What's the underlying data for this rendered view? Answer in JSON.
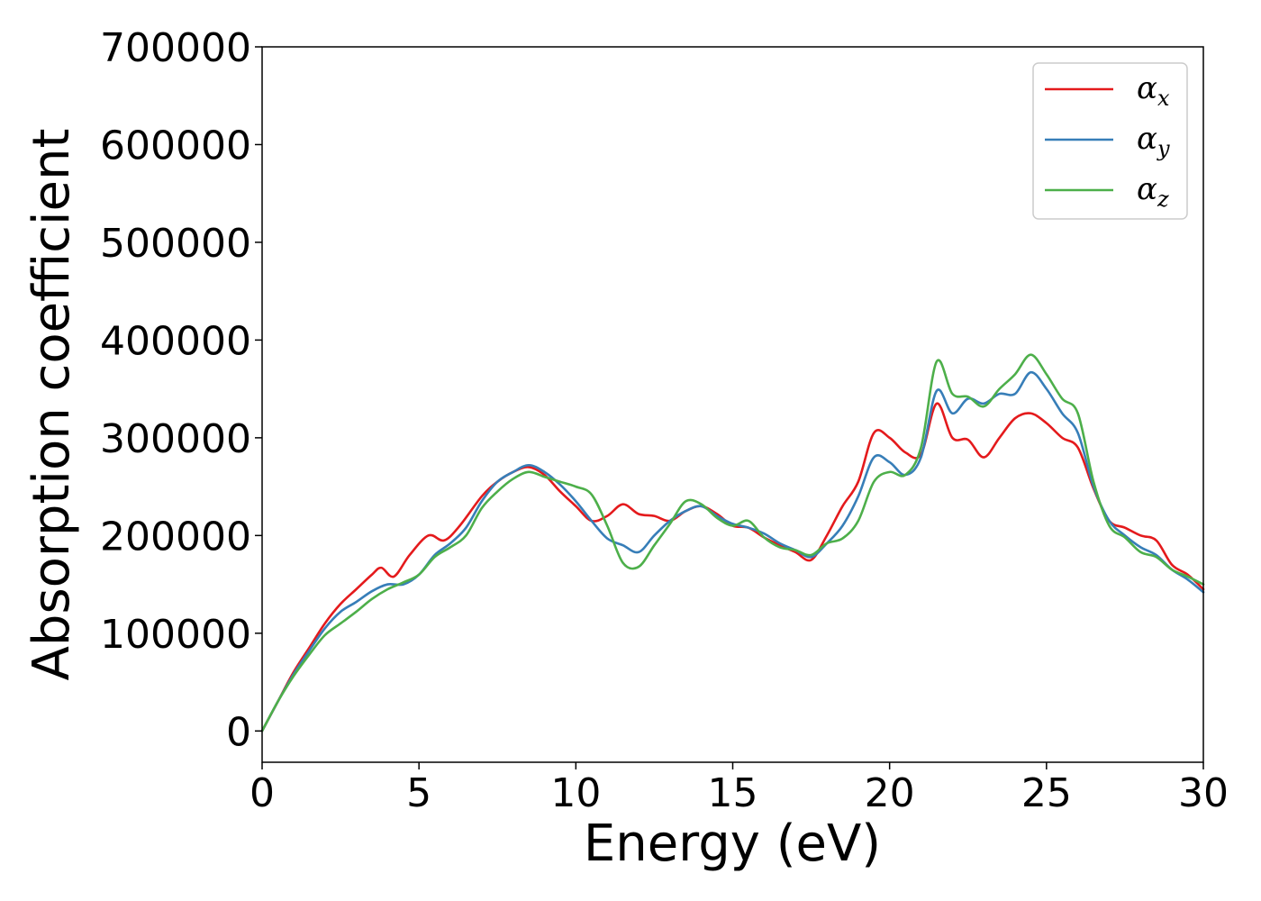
{
  "chart_data": {
    "type": "line",
    "title": "",
    "xlabel": "Energy (eV)",
    "ylabel": "Absorption coefficient",
    "xlim": [
      0,
      30
    ],
    "ylim": [
      -32000,
      700000
    ],
    "xticks": [
      0,
      5,
      10,
      15,
      20,
      25,
      30
    ],
    "yticks": [
      0,
      100000,
      200000,
      300000,
      400000,
      500000,
      600000,
      700000
    ],
    "grid": false,
    "legend_position": "top-right",
    "series": [
      {
        "name": "α_x",
        "symbol": "α",
        "subscript": "x",
        "color": "#e41a1c",
        "x": [
          0,
          0.5,
          1.0,
          1.5,
          2.0,
          2.5,
          3.0,
          3.5,
          3.8,
          4.2,
          4.7,
          5.3,
          5.8,
          6.3,
          7.0,
          7.5,
          8.0,
          8.5,
          9.0,
          9.5,
          10.0,
          10.5,
          11.0,
          11.5,
          12.0,
          12.5,
          13.0,
          13.5,
          14.0,
          14.5,
          15.0,
          15.5,
          16.0,
          16.5,
          17.0,
          17.5,
          18.0,
          18.5,
          19.0,
          19.5,
          20.0,
          20.5,
          21.0,
          21.5,
          22.0,
          22.5,
          23.0,
          23.5,
          24.0,
          24.5,
          25.0,
          25.5,
          26.0,
          26.5,
          27.0,
          27.5,
          28.0,
          28.5,
          29.0,
          29.5,
          30.0
        ],
        "y": [
          0,
          30000,
          60000,
          85000,
          110000,
          130000,
          145000,
          160000,
          167000,
          158000,
          180000,
          200000,
          195000,
          210000,
          240000,
          255000,
          265000,
          270000,
          262000,
          245000,
          230000,
          215000,
          220000,
          232000,
          222000,
          220000,
          215000,
          225000,
          230000,
          222000,
          210000,
          208000,
          198000,
          190000,
          183000,
          175000,
          200000,
          230000,
          255000,
          305000,
          300000,
          285000,
          283000,
          335000,
          300000,
          298000,
          280000,
          300000,
          320000,
          325000,
          315000,
          300000,
          290000,
          248000,
          215000,
          208000,
          200000,
          195000,
          170000,
          160000,
          145000
        ]
      },
      {
        "name": "α_y",
        "symbol": "α",
        "subscript": "y",
        "color": "#377eb8",
        "x": [
          0,
          0.5,
          1.0,
          1.5,
          2.0,
          2.5,
          3.0,
          3.5,
          4.0,
          4.5,
          5.0,
          5.5,
          6.0,
          6.5,
          7.0,
          7.5,
          8.0,
          8.5,
          9.0,
          9.5,
          10.0,
          10.5,
          11.0,
          11.5,
          12.0,
          12.5,
          13.0,
          13.5,
          14.0,
          14.5,
          15.0,
          15.5,
          16.0,
          16.5,
          17.0,
          17.5,
          18.0,
          18.5,
          19.0,
          19.5,
          20.0,
          20.5,
          21.0,
          21.5,
          22.0,
          22.5,
          23.0,
          23.5,
          24.0,
          24.5,
          25.0,
          25.5,
          26.0,
          26.5,
          27.0,
          27.5,
          28.0,
          28.5,
          29.0,
          29.5,
          30.0
        ],
        "y": [
          0,
          30000,
          58000,
          82000,
          105000,
          122000,
          132000,
          143000,
          150000,
          150000,
          160000,
          180000,
          192000,
          208000,
          235000,
          255000,
          265000,
          272000,
          265000,
          252000,
          235000,
          215000,
          197000,
          190000,
          183000,
          200000,
          215000,
          225000,
          230000,
          220000,
          212000,
          208000,
          202000,
          192000,
          185000,
          178000,
          192000,
          210000,
          240000,
          280000,
          275000,
          262000,
          280000,
          348000,
          325000,
          340000,
          335000,
          345000,
          345000,
          367000,
          350000,
          325000,
          305000,
          250000,
          215000,
          200000,
          188000,
          180000,
          165000,
          155000,
          142000
        ]
      },
      {
        "name": "α_z",
        "symbol": "α",
        "subscript": "z",
        "color": "#4daf4a",
        "x": [
          0,
          0.5,
          1.0,
          1.5,
          2.0,
          2.5,
          3.0,
          3.5,
          4.0,
          4.5,
          5.0,
          5.5,
          6.0,
          6.5,
          7.0,
          7.5,
          8.0,
          8.5,
          9.0,
          9.5,
          10.0,
          10.5,
          11.0,
          11.5,
          12.0,
          12.5,
          13.0,
          13.5,
          14.0,
          14.5,
          15.0,
          15.5,
          16.0,
          16.5,
          17.0,
          17.5,
          18.0,
          18.5,
          19.0,
          19.5,
          20.0,
          20.5,
          21.0,
          21.5,
          22.0,
          22.5,
          23.0,
          23.5,
          24.0,
          24.5,
          25.0,
          25.5,
          26.0,
          26.5,
          27.0,
          27.5,
          28.0,
          28.5,
          29.0,
          29.5,
          30.0
        ],
        "y": [
          0,
          30000,
          56000,
          78000,
          98000,
          110000,
          122000,
          135000,
          145000,
          152000,
          160000,
          178000,
          188000,
          200000,
          228000,
          245000,
          258000,
          265000,
          260000,
          255000,
          250000,
          242000,
          210000,
          172000,
          168000,
          190000,
          212000,
          235000,
          232000,
          218000,
          210000,
          215000,
          198000,
          188000,
          185000,
          180000,
          192000,
          197000,
          215000,
          255000,
          265000,
          262000,
          290000,
          378000,
          345000,
          342000,
          332000,
          350000,
          365000,
          385000,
          365000,
          340000,
          325000,
          255000,
          210000,
          198000,
          183000,
          178000,
          165000,
          158000,
          150000
        ]
      }
    ]
  }
}
